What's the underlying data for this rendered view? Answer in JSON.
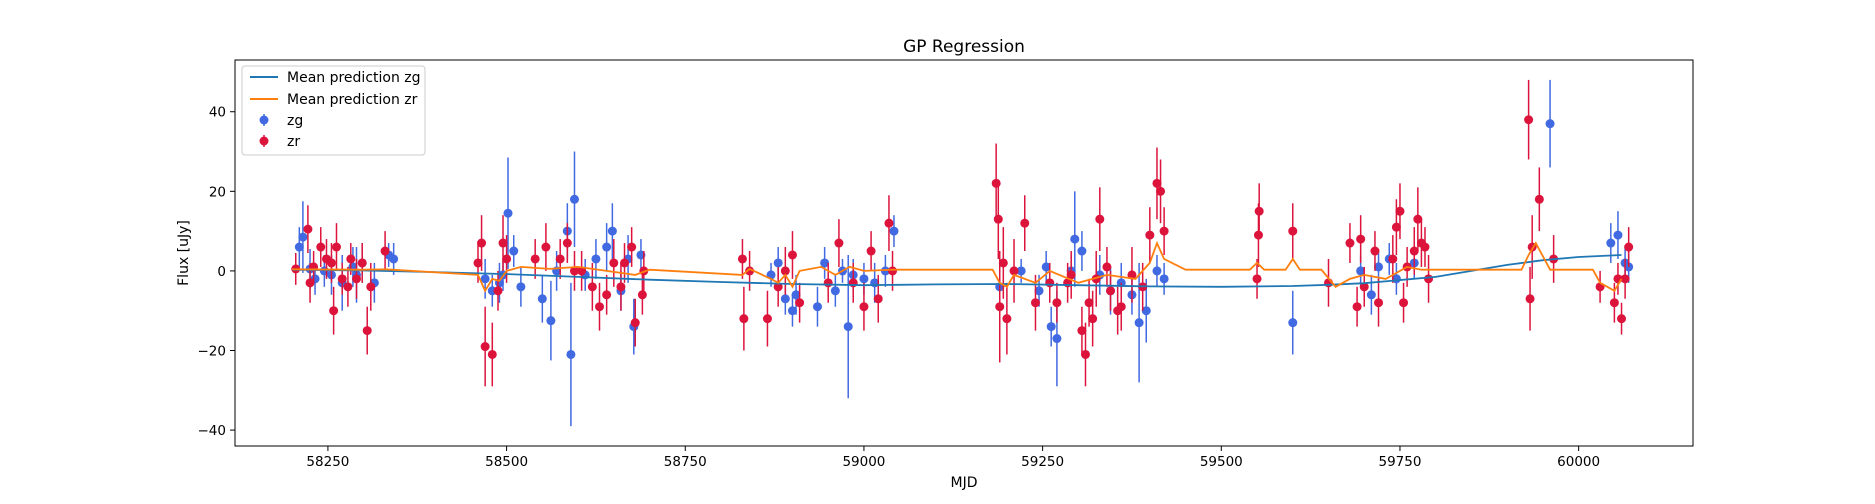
{
  "chart_data": {
    "type": "scatter",
    "title": "GP Regression",
    "xlabel": "MJD",
    "ylabel": "Flux [uJy]",
    "xlim": [
      58120,
      60160
    ],
    "ylim": [
      -44,
      53
    ],
    "xticks": [
      58250,
      58500,
      58750,
      59000,
      59250,
      59500,
      59750,
      60000
    ],
    "yticks": [
      -40,
      -20,
      0,
      20,
      40
    ],
    "legend_position": "top-left",
    "colors": {
      "zg": "#4169e1",
      "zr": "#dc143c",
      "mean_zg": "#1f77b4",
      "mean_zr": "#ff7f0e"
    },
    "lines": [
      {
        "name": "Mean prediction zg",
        "x": [
          58200,
          58300,
          58400,
          58500,
          58600,
          58700,
          58800,
          58900,
          59000,
          59100,
          59200,
          59300,
          59400,
          59500,
          59600,
          59650,
          59700,
          59800,
          59900,
          59950,
          60000,
          60060
        ],
        "y": [
          0.3,
          0.1,
          -0.3,
          -0.8,
          -1.5,
          -2.2,
          -2.8,
          -3.3,
          -3.6,
          -3.4,
          -3.3,
          -3.6,
          -3.9,
          -4.0,
          -3.8,
          -3.5,
          -3.1,
          -1.5,
          1.5,
          2.7,
          3.5,
          4.0
        ]
      },
      {
        "name": "Mean prediction zr",
        "x": [
          58200,
          58300,
          58330,
          58460,
          58470,
          58480,
          58490,
          58500,
          58520,
          58560,
          58600,
          58640,
          58680,
          58700,
          58830,
          58840,
          58870,
          58880,
          58890,
          58900,
          58910,
          58940,
          58960,
          58980,
          59000,
          59040,
          59180,
          59190,
          59200,
          59210,
          59240,
          59260,
          59300,
          59340,
          59380,
          59400,
          59410,
          59420,
          59450,
          59540,
          59550,
          59560,
          59590,
          59600,
          59610,
          59640,
          59660,
          59680,
          59700,
          59730,
          59760,
          59780,
          59920,
          59930,
          59940,
          59960,
          60020,
          60030,
          60050,
          60060
        ],
        "y": [
          0.4,
          0.3,
          0.4,
          -1,
          -5,
          -2,
          -2.5,
          0,
          1,
          0.5,
          1,
          0,
          -1,
          0.3,
          -1,
          0.5,
          -2,
          -3,
          -1,
          -4,
          0,
          1,
          -1,
          1,
          0,
          0.3,
          0.3,
          -3,
          -4,
          -1,
          -3,
          0,
          -3,
          -1,
          -2,
          2,
          7,
          3,
          0.3,
          0.3,
          2,
          0.3,
          0.3,
          3,
          0.3,
          0.3,
          -4,
          -2,
          -1,
          -2,
          1,
          0.3,
          0.3,
          4,
          7,
          0.3,
          0.3,
          -3,
          -5,
          -2
        ]
      }
    ],
    "series": [
      {
        "name": "zg",
        "points": [
          [
            58210,
            6,
            5
          ],
          [
            58215,
            8.5,
            9
          ],
          [
            58225,
            0.5,
            5
          ],
          [
            58232,
            -2,
            4
          ],
          [
            58245,
            0,
            4
          ],
          [
            58255,
            -1,
            5
          ],
          [
            58270,
            -3,
            7
          ],
          [
            58285,
            1,
            5
          ],
          [
            58290,
            -1,
            7
          ],
          [
            58298,
            2,
            5
          ],
          [
            58315,
            -3,
            5
          ],
          [
            58335,
            4,
            3
          ],
          [
            58342,
            3,
            4
          ],
          [
            58470,
            -2,
            5
          ],
          [
            58480,
            -5,
            4
          ],
          [
            58490,
            -3,
            5
          ],
          [
            58495,
            -1,
            4
          ],
          [
            58502,
            14.5,
            14
          ],
          [
            58510,
            5,
            4
          ],
          [
            58520,
            -4,
            5
          ],
          [
            58550,
            -7,
            6
          ],
          [
            58562,
            -12.5,
            10
          ],
          [
            58570,
            0,
            5
          ],
          [
            58585,
            10,
            7
          ],
          [
            58590,
            -21,
            18
          ],
          [
            58595,
            18,
            12
          ],
          [
            58610,
            -1,
            4
          ],
          [
            58625,
            3,
            5
          ],
          [
            58640,
            6,
            6
          ],
          [
            58648,
            10,
            7
          ],
          [
            58660,
            -5,
            5
          ],
          [
            58670,
            3,
            6
          ],
          [
            58678,
            -14,
            7
          ],
          [
            58688,
            4,
            4
          ],
          [
            58870,
            -1,
            3
          ],
          [
            58880,
            2,
            4
          ],
          [
            58890,
            -7,
            4
          ],
          [
            58900,
            -10,
            4
          ],
          [
            58905,
            -6,
            5
          ],
          [
            58935,
            -9,
            5
          ],
          [
            58945,
            2,
            4
          ],
          [
            58960,
            -5,
            4
          ],
          [
            58970,
            0,
            3
          ],
          [
            58978,
            -14,
            18
          ],
          [
            58985,
            -1,
            4
          ],
          [
            59000,
            -2,
            4
          ],
          [
            59015,
            -3,
            5
          ],
          [
            59030,
            0,
            4
          ],
          [
            59042,
            10,
            4
          ],
          [
            59190,
            -4,
            4
          ],
          [
            59220,
            0,
            3
          ],
          [
            59245,
            -5,
            4
          ],
          [
            59255,
            1,
            4
          ],
          [
            59262,
            -14,
            5
          ],
          [
            59270,
            -17,
            12
          ],
          [
            59290,
            0,
            4
          ],
          [
            59295,
            8,
            12
          ],
          [
            59305,
            5,
            5
          ],
          [
            59330,
            -1,
            5
          ],
          [
            59345,
            -5,
            6
          ],
          [
            59360,
            -3,
            5
          ],
          [
            59375,
            -6,
            5
          ],
          [
            59385,
            -13,
            15
          ],
          [
            59395,
            -10,
            8
          ],
          [
            59410,
            0,
            4
          ],
          [
            59420,
            -2,
            4
          ],
          [
            59600,
            -13,
            8
          ],
          [
            59695,
            0,
            4
          ],
          [
            59710,
            -6,
            5
          ],
          [
            59720,
            1,
            4
          ],
          [
            59735,
            3,
            4
          ],
          [
            59745,
            -2,
            4
          ],
          [
            59770,
            2,
            4
          ],
          [
            59960,
            37,
            11
          ],
          [
            60045,
            7,
            5
          ],
          [
            60055,
            9,
            6
          ],
          [
            60065,
            2,
            4
          ],
          [
            60070,
            1,
            4
          ]
        ]
      },
      {
        "name": "zr",
        "points": [
          [
            58205,
            0.5,
            4
          ],
          [
            58222,
            10.5,
            6
          ],
          [
            58225,
            -3,
            5
          ],
          [
            58230,
            1,
            4
          ],
          [
            58240,
            6,
            5
          ],
          [
            58248,
            3,
            5
          ],
          [
            58255,
            2,
            5
          ],
          [
            58258,
            -10,
            6
          ],
          [
            58262,
            6,
            6
          ],
          [
            58270,
            -2,
            4
          ],
          [
            58278,
            -4,
            5
          ],
          [
            58282,
            3,
            4
          ],
          [
            58290,
            -2,
            5
          ],
          [
            58298,
            2,
            5
          ],
          [
            58305,
            -15,
            6
          ],
          [
            58310,
            -4,
            6
          ],
          [
            58330,
            5,
            5
          ],
          [
            58460,
            2,
            5
          ],
          [
            58465,
            7,
            7
          ],
          [
            58470,
            -19,
            10
          ],
          [
            58480,
            -21,
            8
          ],
          [
            58488,
            -5,
            5
          ],
          [
            58495,
            7,
            7
          ],
          [
            58500,
            3,
            6
          ],
          [
            58540,
            3,
            5
          ],
          [
            58555,
            6,
            6
          ],
          [
            58575,
            3,
            5
          ],
          [
            58585,
            7,
            5
          ],
          [
            58595,
            0,
            5
          ],
          [
            58605,
            0,
            5
          ],
          [
            58620,
            -4,
            6
          ],
          [
            58630,
            -9,
            6
          ],
          [
            58640,
            -6,
            5
          ],
          [
            58650,
            2,
            6
          ],
          [
            58660,
            -4,
            6
          ],
          [
            58665,
            2,
            5
          ],
          [
            58675,
            6,
            5
          ],
          [
            58680,
            -13,
            6
          ],
          [
            58690,
            -6,
            5
          ],
          [
            58692,
            0,
            5
          ],
          [
            58830,
            3,
            5
          ],
          [
            58832,
            -12,
            8
          ],
          [
            58840,
            0,
            5
          ],
          [
            58865,
            -12,
            7
          ],
          [
            58880,
            -4,
            5
          ],
          [
            58890,
            0,
            6
          ],
          [
            58900,
            4,
            6
          ],
          [
            58910,
            -8,
            5
          ],
          [
            58950,
            -3,
            5
          ],
          [
            58965,
            7,
            6
          ],
          [
            58985,
            -3,
            5
          ],
          [
            59000,
            -9,
            6
          ],
          [
            59010,
            5,
            5
          ],
          [
            59020,
            -7,
            6
          ],
          [
            59035,
            12,
            7
          ],
          [
            59040,
            0,
            5
          ],
          [
            59185,
            22,
            10
          ],
          [
            59188,
            13,
            10
          ],
          [
            59190,
            -9,
            14
          ],
          [
            59195,
            2,
            9
          ],
          [
            59200,
            -12,
            9
          ],
          [
            59210,
            0,
            8
          ],
          [
            59225,
            12,
            7
          ],
          [
            59240,
            -8,
            7
          ],
          [
            59260,
            -3,
            5
          ],
          [
            59270,
            -8,
            5
          ],
          [
            59285,
            -3,
            5
          ],
          [
            59290,
            -1,
            6
          ],
          [
            59305,
            -15,
            6
          ],
          [
            59310,
            -21,
            8
          ],
          [
            59315,
            -8,
            6
          ],
          [
            59320,
            -12,
            7
          ],
          [
            59325,
            -2,
            7
          ],
          [
            59330,
            13,
            8
          ],
          [
            59340,
            1,
            5
          ],
          [
            59345,
            -5,
            5
          ],
          [
            59355,
            -10,
            6
          ],
          [
            59360,
            -9,
            6
          ],
          [
            59375,
            -1,
            7
          ],
          [
            59390,
            -4,
            6
          ],
          [
            59400,
            9,
            7
          ],
          [
            59410,
            22,
            9
          ],
          [
            59415,
            20,
            8
          ],
          [
            59420,
            10,
            6
          ],
          [
            59550,
            -2,
            5
          ],
          [
            59552,
            9,
            8
          ],
          [
            59553,
            15,
            7
          ],
          [
            59600,
            10,
            7
          ],
          [
            59650,
            -3,
            6
          ],
          [
            59680,
            7,
            5
          ],
          [
            59690,
            -9,
            5
          ],
          [
            59695,
            8,
            6
          ],
          [
            59700,
            -4,
            5
          ],
          [
            59715,
            5,
            5
          ],
          [
            59720,
            -8,
            6
          ],
          [
            59740,
            3,
            6
          ],
          [
            59745,
            11,
            7
          ],
          [
            59750,
            15,
            7
          ],
          [
            59755,
            -8,
            5
          ],
          [
            59760,
            1,
            5
          ],
          [
            59770,
            5,
            6
          ],
          [
            59775,
            13,
            8
          ],
          [
            59780,
            7,
            6
          ],
          [
            59785,
            6,
            5
          ],
          [
            59790,
            -2,
            6
          ],
          [
            59930,
            38,
            10
          ],
          [
            59932,
            -7,
            8
          ],
          [
            59935,
            6,
            8
          ],
          [
            59945,
            18,
            8
          ],
          [
            59965,
            3,
            6
          ],
          [
            60030,
            -4,
            4
          ],
          [
            60050,
            -8,
            5
          ],
          [
            60055,
            -2,
            4
          ],
          [
            60060,
            -12,
            4
          ],
          [
            60065,
            -2,
            5
          ],
          [
            60070,
            6,
            5
          ]
        ]
      }
    ]
  }
}
